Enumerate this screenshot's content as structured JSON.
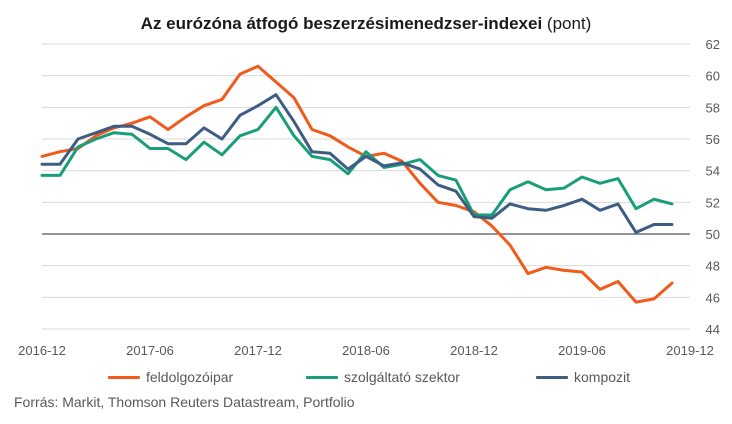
{
  "chart_data": {
    "type": "line",
    "title_main": "Az eurózóna átfogó beszerzésimenedzser-indexei",
    "title_unit": "(pont)",
    "ylim": [
      44,
      62
    ],
    "y_ticks": [
      "44",
      "46",
      "48",
      "50",
      "52",
      "54",
      "56",
      "58",
      "60",
      "62"
    ],
    "x_ticks": [
      "2016-12",
      "2017-06",
      "2017-12",
      "2018-06",
      "2018-12",
      "2019-06",
      "2019-12"
    ],
    "x": [
      "2016-12",
      "2017-01",
      "2017-02",
      "2017-03",
      "2017-04",
      "2017-05",
      "2017-06",
      "2017-07",
      "2017-08",
      "2017-09",
      "2017-10",
      "2017-11",
      "2017-12",
      "2018-01",
      "2018-02",
      "2018-03",
      "2018-04",
      "2018-05",
      "2018-06",
      "2018-07",
      "2018-08",
      "2018-09",
      "2018-10",
      "2018-11",
      "2018-12",
      "2019-01",
      "2019-02",
      "2019-03",
      "2019-04",
      "2019-05",
      "2019-06",
      "2019-07",
      "2019-08",
      "2019-09",
      "2019-10",
      "2019-11"
    ],
    "grid": true,
    "legend_position": "bottom",
    "series": [
      {
        "name": "feldolgozóipar",
        "color": "#f05a1a",
        "values": [
          54.9,
          55.2,
          55.4,
          56.2,
          56.7,
          57.0,
          57.4,
          56.6,
          57.4,
          58.1,
          58.5,
          60.1,
          60.6,
          59.6,
          58.6,
          56.6,
          56.2,
          55.5,
          54.9,
          55.1,
          54.6,
          53.2,
          52.0,
          51.8,
          51.4,
          50.5,
          49.3,
          47.5,
          47.9,
          47.7,
          47.6,
          46.5,
          47.0,
          45.7,
          45.9,
          46.9
        ]
      },
      {
        "name": "szolgáltató szektor",
        "color": "#1a9e7a",
        "values": [
          53.7,
          53.7,
          55.5,
          56.0,
          56.4,
          56.3,
          55.4,
          55.4,
          54.7,
          55.8,
          55.0,
          56.2,
          56.6,
          58.0,
          56.2,
          54.9,
          54.7,
          53.8,
          55.2,
          54.2,
          54.4,
          54.7,
          53.7,
          53.4,
          51.2,
          51.2,
          52.8,
          53.3,
          52.8,
          52.9,
          53.6,
          53.2,
          53.5,
          51.6,
          52.2,
          51.9
        ]
      },
      {
        "name": "kompozit",
        "color": "#3d5d84",
        "values": [
          54.4,
          54.4,
          56.0,
          56.4,
          56.8,
          56.8,
          56.3,
          55.7,
          55.7,
          56.7,
          56.0,
          57.5,
          58.1,
          58.8,
          57.1,
          55.2,
          55.1,
          54.1,
          54.9,
          54.3,
          54.5,
          54.1,
          53.1,
          52.7,
          51.1,
          51.0,
          51.9,
          51.6,
          51.5,
          51.8,
          52.2,
          51.5,
          51.9,
          50.1,
          50.6,
          50.6
        ]
      }
    ],
    "source": "Forrás: Markit, Thomson Reuters Datastream, Portfolio"
  }
}
